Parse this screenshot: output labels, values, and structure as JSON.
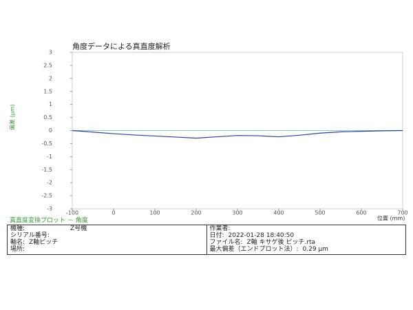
{
  "chart_data": {
    "type": "line",
    "title": "角度データによる真直度解析",
    "subtitle": "真直度変換プロット － 角度",
    "y_label": "偏差 (μm)",
    "x_label": "位置 (mm)",
    "x": [
      -100,
      -50,
      0,
      50,
      100,
      150,
      200,
      250,
      300,
      350,
      400,
      450,
      500,
      550,
      600,
      650,
      700
    ],
    "series": [
      {
        "name": "偏差",
        "color": "#2b3f8f",
        "values": [
          0,
          -0.06,
          -0.12,
          -0.17,
          -0.21,
          -0.25,
          -0.29,
          -0.24,
          -0.19,
          -0.2,
          -0.24,
          -0.18,
          -0.1,
          -0.05,
          -0.03,
          -0.01,
          0
        ]
      }
    ],
    "xlim": [
      -100,
      700
    ],
    "xticks": [
      -100,
      0,
      100,
      200,
      300,
      400,
      500,
      600,
      700
    ],
    "ylim": [
      -3,
      3
    ],
    "yticks": [
      3,
      2.5,
      2,
      1.5,
      1,
      0.5,
      0,
      -0.5,
      -1,
      -1.5,
      -2,
      -2.5,
      -3
    ]
  },
  "info": {
    "left": [
      [
        "機種:",
        "Z号機"
      ],
      [
        "シリアル番号:",
        ""
      ],
      [
        "軸名:",
        "Z軸ピッチ"
      ],
      [
        "場所:",
        ""
      ]
    ],
    "right": [
      [
        "作業者:",
        ""
      ],
      [
        "日付:",
        "2022-01-28 18:40:50"
      ],
      [
        "ファイル名:",
        "Z軸 キサゲ後 ピッチ.rta"
      ],
      [
        "最大偏差（エンドプロット法）:",
        "0.29 μm"
      ]
    ]
  }
}
